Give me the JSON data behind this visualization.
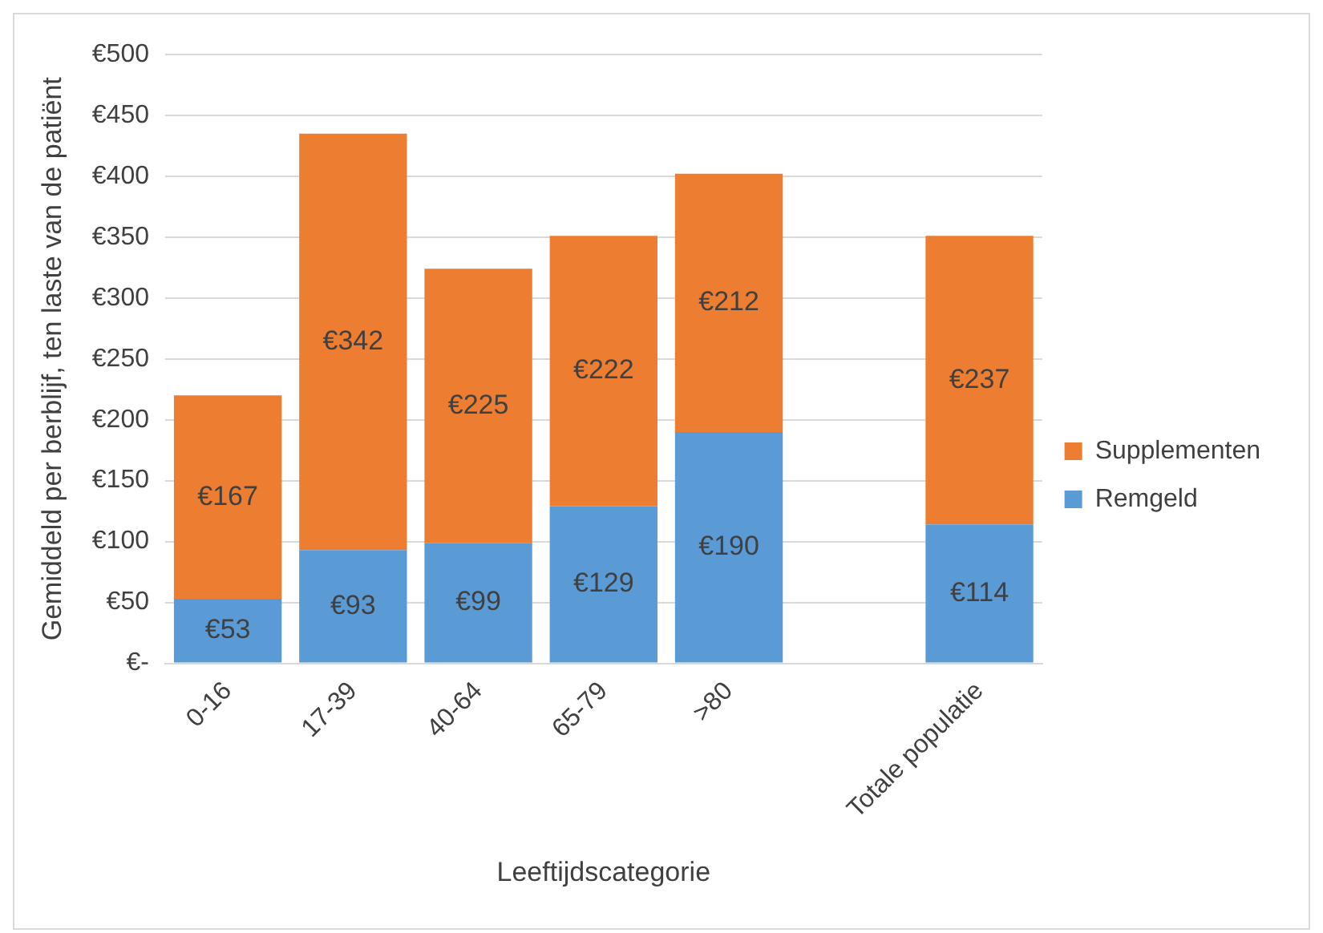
{
  "chart_data": {
    "type": "bar",
    "stacked": true,
    "xlabel": "Leeftijdscategorie",
    "ylabel": "Gemiddeld per berblijf, ten laste van de patiënt",
    "categories": [
      "0-16",
      "17-39",
      "40-64",
      "65-79",
      ">80",
      null,
      "Totale populatie"
    ],
    "series": [
      {
        "name": "Remgeld",
        "color": "#5b9bd5",
        "values": [
          53,
          93,
          99,
          129,
          190,
          null,
          114
        ],
        "value_labels": [
          "€53",
          "€93",
          "€99",
          "€129",
          "€190",
          null,
          "€114"
        ]
      },
      {
        "name": "Supplementen",
        "color": "#ed7d31",
        "values": [
          167,
          342,
          225,
          222,
          212,
          null,
          237
        ],
        "value_labels": [
          "€167",
          "€342",
          "€225",
          "€222",
          "€212",
          null,
          "€237"
        ]
      }
    ],
    "ylim": [
      0,
      500
    ],
    "yticks": [
      {
        "value": 0,
        "label": "€-"
      },
      {
        "value": 50,
        "label": "€50"
      },
      {
        "value": 100,
        "label": "€100"
      },
      {
        "value": 150,
        "label": "€150"
      },
      {
        "value": 200,
        "label": "€200"
      },
      {
        "value": 250,
        "label": "€250"
      },
      {
        "value": 300,
        "label": "€300"
      },
      {
        "value": 350,
        "label": "€350"
      },
      {
        "value": 400,
        "label": "€400"
      },
      {
        "value": 450,
        "label": "€450"
      },
      {
        "value": 500,
        "label": "€500"
      }
    ],
    "grid": "y",
    "legend": "right"
  }
}
